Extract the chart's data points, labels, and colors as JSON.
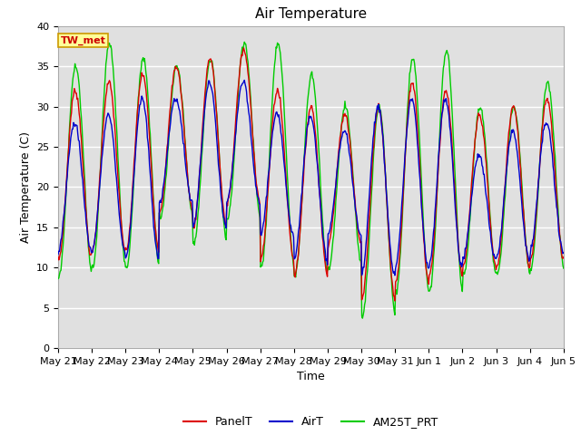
{
  "title": "Air Temperature",
  "ylabel": "Air Temperature (C)",
  "xlabel": "Time",
  "annotation": "TW_met",
  "ylim": [
    0,
    40
  ],
  "yticks": [
    0,
    5,
    10,
    15,
    20,
    25,
    30,
    35,
    40
  ],
  "xtick_labels": [
    "May 21",
    "May 22",
    "May 23",
    "May 24",
    "May 25",
    "May 26",
    "May 27",
    "May 28",
    "May 29",
    "May 30",
    "May 31",
    "Jun 1",
    "Jun 2",
    "Jun 3",
    "Jun 4",
    "Jun 5"
  ],
  "n_days": 15,
  "legend_labels": [
    "PanelT",
    "AirT",
    "AM25T_PRT"
  ],
  "legend_colors": [
    "#dd0000",
    "#0000cc",
    "#00cc00"
  ],
  "bg_color": "#e0e0e0",
  "fig_bg": "#ffffff",
  "annotation_box_color": "#ffff99",
  "annotation_text_color": "#cc0000",
  "annotation_border_color": "#cc9900",
  "grid_color": "#ffffff",
  "title_fontsize": 11,
  "axis_label_fontsize": 9,
  "tick_fontsize": 8,
  "legend_fontsize": 9,
  "day_mins_panel": [
    11,
    12,
    12,
    17,
    15,
    18,
    11,
    9,
    13,
    6,
    8,
    9,
    10,
    10,
    11
  ],
  "day_maxs_panel": [
    32,
    33,
    34,
    35,
    36,
    37,
    32,
    30,
    29,
    30,
    33,
    32,
    29,
    30,
    31
  ],
  "day_mins_air": [
    12,
    12,
    11,
    18,
    15,
    18,
    14,
    11,
    14,
    9,
    10,
    10,
    11,
    11,
    12
  ],
  "day_maxs_air": [
    28,
    29,
    31,
    31,
    33,
    33,
    29,
    29,
    27,
    30,
    31,
    31,
    24,
    27,
    28
  ],
  "day_mins_am25": [
    9,
    10,
    10,
    16,
    13,
    16,
    10,
    9,
    10,
    4,
    7,
    7,
    9,
    9,
    10
  ],
  "day_maxs_am25": [
    35,
    38,
    36,
    35,
    36,
    38,
    38,
    34,
    30,
    30,
    36,
    37,
    30,
    30,
    33
  ],
  "phase_panel": -0.05,
  "phase_air": 0.05,
  "phase_am25": -0.15
}
